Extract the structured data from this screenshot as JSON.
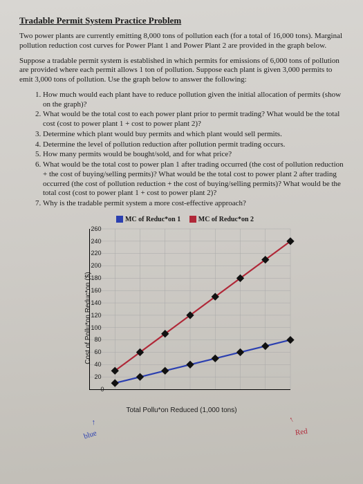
{
  "title": "Tradable Permit System Practice Problem",
  "para1": "Two power plants are currently emitting 8,000 tons of pollution each (for a total of 16,000 tons). Marginal pollution reduction cost curves for Power Plant 1 and Power Plant 2 are provided in the graph below.",
  "para2": "Suppose a tradable permit system is established in which permits for emissions of 6,000 tons of pollution are provided where each permit allows 1 ton of pollution. Suppose each plant is given 3,000 permits to emit 3,000 tons of pollution. Use the graph below to answer the following:",
  "questions": [
    "How much would each plant have to reduce pollution given the initial allocation of permits (show on the graph)?",
    "What would be the total cost to each power plant prior to permit trading? What would be the total cost (cost to power plant 1 + cost to power plant 2)?",
    "Determine which plant would buy permits and which plant would sell permits.",
    "Determine the level of pollution reduction after pollution permit trading occurs.",
    "How many permits would be bought/sold, and for what price?",
    "What would be the total cost to power plan 1 after trading occurred (the cost of pollution reduction + the cost of buying/selling permits)? What would be the total cost to power plant 2 after trading occurred (the cost of pollution reduction + the cost of buying/selling permits)? What would be the total cost (cost to power plant 1 + cost to power plant 2)?",
    "Why is the tradable permit system a more cost-effective approach?"
  ],
  "chart": {
    "type": "line",
    "legend1": "MC of Reduc*on 1",
    "legend2": "MC of Reduc*on 2",
    "legend1_color": "#2b3fb0",
    "legend2_color": "#b02838",
    "ylabel": "Cost of Pollu*on Reduc*on ($)",
    "xlabel": "Total Pollu*on Reduced (1,000 tons)",
    "ylim": [
      0,
      260
    ],
    "ytick_step": 20,
    "xlim": [
      0,
      8
    ],
    "xtick_step": 1,
    "marker_color": "#111",
    "grid_color": "#a8a8a8",
    "s1": {
      "x": [
        1,
        2,
        3,
        4,
        5,
        6,
        7,
        8
      ],
      "y": [
        10,
        20,
        30,
        40,
        50,
        60,
        70,
        80
      ]
    },
    "s2": {
      "x": [
        1,
        2,
        3,
        4,
        5,
        6,
        7,
        8
      ],
      "y": [
        30,
        60,
        90,
        120,
        150,
        180,
        210,
        240
      ]
    }
  },
  "annotations": {
    "blue_note": "blue",
    "blue_color": "#2b3fb0",
    "red_note": "Red",
    "red_color": "#b02838",
    "arrow_glyph": "↑"
  }
}
